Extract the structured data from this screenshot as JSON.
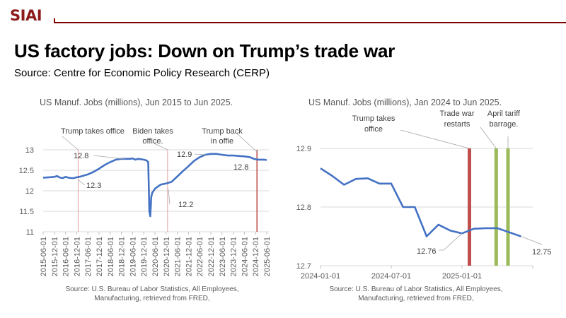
{
  "header": {
    "logo": "SIAI",
    "brand_color": "#7a0000",
    "headline": "US factory jobs: Down on Trump’s trade war",
    "subhead": "Source: Centre for Economic Policy Research (CERP)"
  },
  "chart_data": [
    {
      "type": "line",
      "title": "US Manuf. Jobs (millions), Jun 2015 to Jun 2025.",
      "xlabel": "",
      "ylabel": "",
      "ylim": [
        11,
        13
      ],
      "yticks": [
        "13",
        "12.5",
        "12",
        "11.5",
        "11"
      ],
      "ytick_values": [
        13,
        12.5,
        12,
        11.5,
        11
      ],
      "xticks": [
        "2015-06-01",
        "2015-12-01",
        "2016-06-01",
        "2016-12-01",
        "2017-06-01",
        "2017-12-01",
        "2018-06-01",
        "2018-12-01",
        "2019-06-01",
        "2019-12-01",
        "2020-06-01",
        "2020-12-01",
        "2021-06-01",
        "2021-12-01",
        "2022-06-01",
        "2022-12-01",
        "2023-06-01",
        "2023-12-01",
        "2024-06-01",
        "2024-12-01",
        "2025-06-01"
      ],
      "grid": true,
      "series": [
        {
          "name": "US Manufacturing Jobs",
          "color": "#4472c4",
          "x": [
            0,
            0.5,
            1,
            1.25,
            1.5,
            1.75,
            2,
            2.25,
            2.5,
            2.75,
            3,
            3.25,
            3.5,
            4,
            4.5,
            5,
            5.5,
            6,
            6.5,
            7,
            7.25,
            7.5,
            7.75,
            8,
            8.25,
            8.5,
            8.75,
            9,
            9.25,
            9.4,
            9.5,
            9.58,
            9.67,
            9.75,
            9.83,
            10,
            10.5,
            11,
            11.5,
            12,
            12.5,
            13,
            13.5,
            14,
            14.5,
            15,
            15.5,
            16,
            16.5,
            17,
            17.5,
            18,
            18.5,
            18.75,
            19,
            19.25,
            19.5,
            19.75,
            20
          ],
          "values": [
            12.32,
            12.33,
            12.34,
            12.36,
            12.32,
            12.31,
            12.34,
            12.32,
            12.31,
            12.31,
            12.33,
            12.34,
            12.36,
            12.4,
            12.46,
            12.54,
            12.63,
            12.7,
            12.76,
            12.78,
            12.78,
            12.78,
            12.78,
            12.79,
            12.76,
            12.78,
            12.77,
            12.76,
            12.74,
            12.7,
            11.5,
            11.38,
            11.85,
            11.95,
            11.98,
            12.05,
            12.15,
            12.18,
            12.22,
            12.35,
            12.48,
            12.6,
            12.73,
            12.82,
            12.88,
            12.9,
            12.9,
            12.88,
            12.86,
            12.86,
            12.85,
            12.84,
            12.82,
            12.79,
            12.77,
            12.76,
            12.76,
            12.76,
            12.75
          ]
        }
      ],
      "events": [
        {
          "label": [
            "Trump takes office"
          ],
          "x": 3.13,
          "color": "#e8a0a0"
        },
        {
          "label": [
            "Biden takes",
            "office."
          ],
          "x": 11.13,
          "color": "#e8a0a0"
        },
        {
          "label": [
            "Trump back",
            "in offie"
          ],
          "x": 19.13,
          "color": "#c0504d"
        }
      ],
      "data_labels": [
        "12.3",
        "12.8",
        "12.2",
        "12.9",
        "12.8"
      ],
      "source": [
        "Source: U.S. Bureau of Labor Statistics, All Employees,",
        "Manufacturing, retrieved from FRED,"
      ]
    },
    {
      "type": "line",
      "title": "US Manuf. Jobs (millions), Jan 2024 to Jun 2025.",
      "xlabel": "",
      "ylabel": "",
      "ylim": [
        12.7,
        12.9
      ],
      "yticks": [
        "12.9",
        "12.8",
        "12.7"
      ],
      "ytick_values": [
        12.9,
        12.8,
        12.7
      ],
      "xticks": [
        "2024-01-01",
        "2024-07-01",
        "2025-01-01"
      ],
      "grid": true,
      "series": [
        {
          "name": "US Manufacturing Jobs",
          "color": "#4472c4",
          "months": [
            "2024-01",
            "2024-02",
            "2024-03",
            "2024-04",
            "2024-05",
            "2024-06",
            "2024-07",
            "2024-08",
            "2024-09",
            "2024-10",
            "2024-11",
            "2024-12",
            "2025-01",
            "2025-02",
            "2025-03",
            "2025-04",
            "2025-05",
            "2025-06"
          ],
          "values": [
            12.866,
            12.853,
            12.838,
            12.848,
            12.849,
            12.84,
            12.84,
            12.8,
            12.8,
            12.75,
            12.77,
            12.76,
            12.755,
            12.763,
            12.764,
            12.764,
            12.757,
            12.75
          ]
        }
      ],
      "events": [
        {
          "label": [
            "Trump takes",
            "office"
          ],
          "month_index": 12.63,
          "color": "#c0504d"
        },
        {
          "label": [
            "Trade war",
            "restarts"
          ],
          "month_index": 14.9,
          "color": "#9bbb59"
        },
        {
          "label": [
            "April tariff",
            "barrage."
          ],
          "month_index": 15.9,
          "color": "#9bbb59"
        }
      ],
      "data_labels": [
        "12.76",
        "12.75"
      ],
      "source": [
        "Source: U.S. Bureau of Labor Statistics, All Employees,",
        "Manufacturing, retrieved from FRED,"
      ]
    }
  ]
}
